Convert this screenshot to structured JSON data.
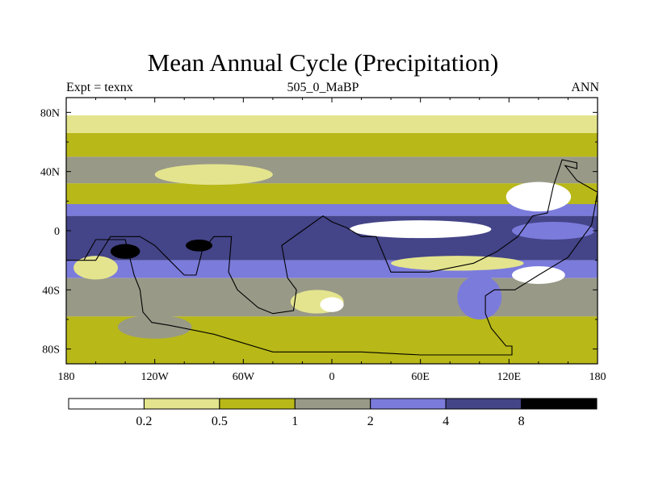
{
  "chart_data": {
    "type": "heatmap",
    "title": "Mean Annual Cycle (Precipitation)",
    "subtitle_left": "Expt = texnx",
    "subtitle_center": "505_0_MaBP",
    "subtitle_right": "ANN",
    "x_ticks": [
      {
        "value": -180,
        "label": "180"
      },
      {
        "value": -120,
        "label": "120W"
      },
      {
        "value": -60,
        "label": "60W"
      },
      {
        "value": 0,
        "label": "0"
      },
      {
        "value": 60,
        "label": "60E"
      },
      {
        "value": 120,
        "label": "120E"
      },
      {
        "value": 180,
        "label": "180"
      }
    ],
    "y_ticks": [
      {
        "value": 80,
        "label": "80N"
      },
      {
        "value": 40,
        "label": "40N"
      },
      {
        "value": 0,
        "label": "0"
      },
      {
        "value": -40,
        "label": "40S"
      },
      {
        "value": -80,
        "label": "80S"
      }
    ],
    "xlim": [
      -180,
      180
    ],
    "ylim": [
      -90,
      90
    ],
    "contour_levels": [
      0.2,
      0.5,
      1,
      2,
      4,
      8
    ],
    "colors": [
      "#ffffff",
      "#e4e48e",
      "#b8b818",
      "#999988",
      "#7b7bdc",
      "#444488",
      "#000000"
    ],
    "precip_bands": [
      {
        "lat_from": 90,
        "lat_to": 78,
        "class": 0
      },
      {
        "lat_from": 78,
        "lat_to": 66,
        "class": 1
      },
      {
        "lat_from": 66,
        "lat_to": 50,
        "class": 2
      },
      {
        "lat_from": 50,
        "lat_to": 32,
        "class": 3
      },
      {
        "lat_from": 32,
        "lat_to": 18,
        "class": 2
      },
      {
        "lat_from": 18,
        "lat_to": 10,
        "class": 4
      },
      {
        "lat_from": 10,
        "lat_to": -20,
        "class": 5
      },
      {
        "lat_from": -20,
        "lat_to": -32,
        "class": 4
      },
      {
        "lat_from": -32,
        "lat_to": -58,
        "class": 3
      },
      {
        "lat_from": -58,
        "lat_to": -90,
        "class": 2
      }
    ],
    "precip_patches": [
      {
        "lon": 60,
        "lat": 1,
        "rlon": 48,
        "rlat": 6,
        "class": 0
      },
      {
        "lon": 140,
        "lat": 23,
        "rlon": 22,
        "rlat": 10,
        "class": 0
      },
      {
        "lon": -80,
        "lat": 38,
        "rlon": 40,
        "rlat": 7,
        "class": 1
      },
      {
        "lon": 85,
        "lat": -22,
        "rlon": 45,
        "rlat": 5,
        "class": 1
      },
      {
        "lon": 140,
        "lat": -30,
        "rlon": 18,
        "rlat": 6,
        "class": 0
      },
      {
        "lon": -10,
        "lat": -48,
        "rlon": 18,
        "rlat": 8,
        "class": 1
      },
      {
        "lon": 0,
        "lat": -50,
        "rlon": 8,
        "rlat": 5,
        "class": 0
      },
      {
        "lon": -160,
        "lat": -25,
        "rlon": 15,
        "rlat": 8,
        "class": 1
      },
      {
        "lon": -120,
        "lat": -65,
        "rlon": 25,
        "rlat": 8,
        "class": 3
      },
      {
        "lon": 100,
        "lat": -45,
        "rlon": 15,
        "rlat": 15,
        "class": 4
      },
      {
        "lon": 150,
        "lat": 0,
        "rlon": 28,
        "rlat": 6,
        "class": 4
      },
      {
        "lon": -140,
        "lat": -14,
        "rlon": 10,
        "rlat": 5,
        "class": 6
      },
      {
        "lon": -90,
        "lat": -10,
        "rlon": 9,
        "rlat": 4,
        "class": 6
      }
    ],
    "coastline_polygons": [
      [
        [
          -180,
          -20
        ],
        [
          -168,
          -20
        ],
        [
          -160,
          -6
        ],
        [
          -140,
          -6
        ],
        [
          -134,
          -30
        ],
        [
          -130,
          -40
        ],
        [
          -128,
          -55
        ],
        [
          -122,
          -62
        ],
        [
          -110,
          -64
        ],
        [
          -80,
          -70
        ],
        [
          -40,
          -82
        ],
        [
          20,
          -82
        ],
        [
          60,
          -84
        ],
        [
          96,
          -84
        ],
        [
          122,
          -84
        ],
        [
          122,
          -78
        ],
        [
          118,
          -78
        ],
        [
          108,
          -66
        ],
        [
          104,
          -56
        ],
        [
          104,
          -44
        ],
        [
          110,
          -40
        ],
        [
          124,
          -40
        ],
        [
          140,
          -30
        ],
        [
          160,
          -18
        ],
        [
          176,
          4
        ],
        [
          180,
          26
        ],
        [
          166,
          34
        ],
        [
          158,
          44
        ],
        [
          166,
          42
        ],
        [
          166,
          46
        ],
        [
          156,
          48
        ],
        [
          150,
          30
        ],
        [
          146,
          12
        ],
        [
          136,
          10
        ],
        [
          126,
          -4
        ],
        [
          112,
          -14
        ],
        [
          96,
          -22
        ],
        [
          66,
          -28
        ],
        [
          40,
          -28
        ],
        [
          30,
          -4
        ],
        [
          20,
          -4
        ],
        [
          10,
          2
        ],
        [
          0,
          6
        ],
        [
          -6,
          10
        ],
        [
          -20,
          0
        ],
        [
          -34,
          -10
        ],
        [
          -30,
          -32
        ],
        [
          -24,
          -40
        ],
        [
          -26,
          -54
        ],
        [
          -40,
          -56
        ],
        [
          -50,
          -52
        ],
        [
          -64,
          -40
        ],
        [
          -70,
          -28
        ],
        [
          -68,
          -4
        ],
        [
          -80,
          -4
        ],
        [
          -88,
          -14
        ],
        [
          -92,
          -30
        ],
        [
          -100,
          -30
        ],
        [
          -110,
          -20
        ],
        [
          -120,
          -10
        ],
        [
          -130,
          -4
        ],
        [
          -150,
          -4
        ],
        [
          -160,
          -20
        ],
        [
          -180,
          -20
        ]
      ]
    ],
    "colorbar_labels": [
      "0.2",
      "0.5",
      "1",
      "2",
      "4",
      "8"
    ]
  }
}
